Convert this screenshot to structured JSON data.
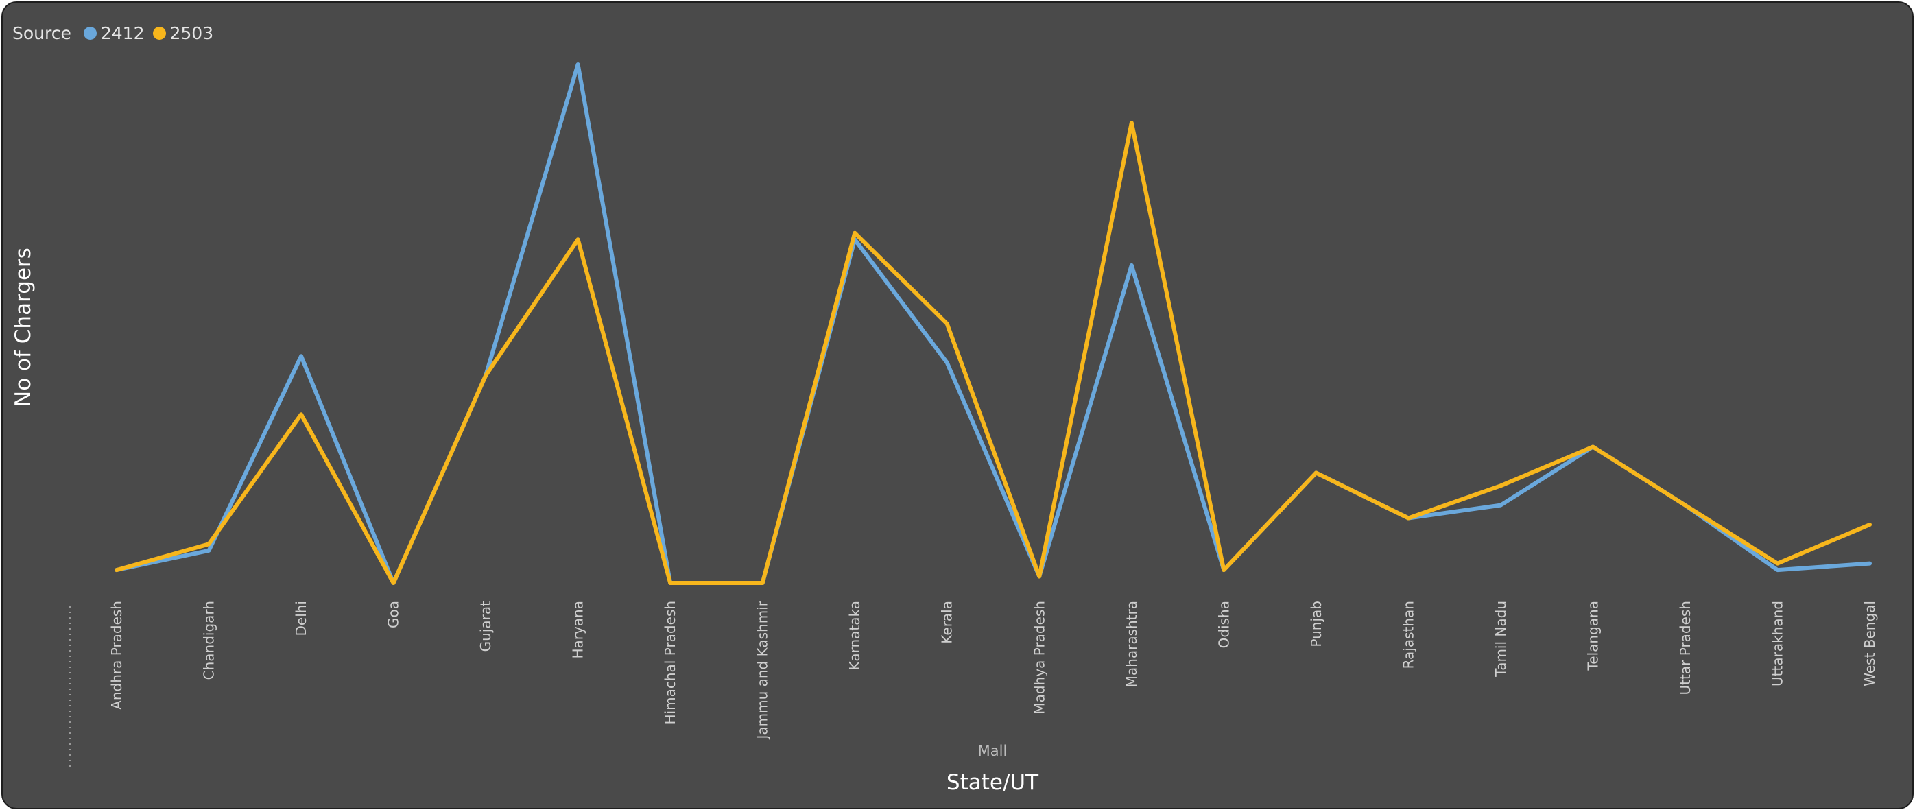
{
  "legend": {
    "title": "Source",
    "items": [
      {
        "label": "2412",
        "color": "#6aa8dc"
      },
      {
        "label": "2503",
        "color": "#f7b61c"
      }
    ]
  },
  "chart_data": {
    "type": "line",
    "xlabel": "State/UT",
    "ylabel": "No of Chargers",
    "group_label": "Mall",
    "ylim": [
      0,
      40
    ],
    "grid": false,
    "legend_position": "top-left",
    "categories": [
      "Andhra Pradesh",
      "Chandigarh",
      "Delhi",
      "Goa",
      "Gujarat",
      "Haryana",
      "Himachal Pradesh",
      "Jammu and Kashmir",
      "Karnataka",
      "Kerala",
      "Madhya Pradesh",
      "Maharashtra",
      "Odisha",
      "Punjab",
      "Rajasthan",
      "Tamil Nadu",
      "Telangana",
      "Uttar Pradesh",
      "Uttarakhand",
      "West Bengal"
    ],
    "series": [
      {
        "name": "2412",
        "color": "#6aa8dc",
        "values": [
          1,
          2.5,
          17.5,
          0,
          16,
          40,
          0,
          0,
          26.5,
          17,
          0.5,
          24.5,
          1,
          8.5,
          5,
          6,
          10.5,
          6,
          1,
          1.5
        ]
      },
      {
        "name": "2503",
        "color": "#f7b61c",
        "values": [
          1,
          3,
          13,
          0,
          16,
          26.5,
          0,
          0,
          27,
          20,
          0.5,
          35.5,
          1,
          8.5,
          5,
          7.5,
          10.5,
          6,
          1.5,
          4.5
        ]
      }
    ]
  }
}
